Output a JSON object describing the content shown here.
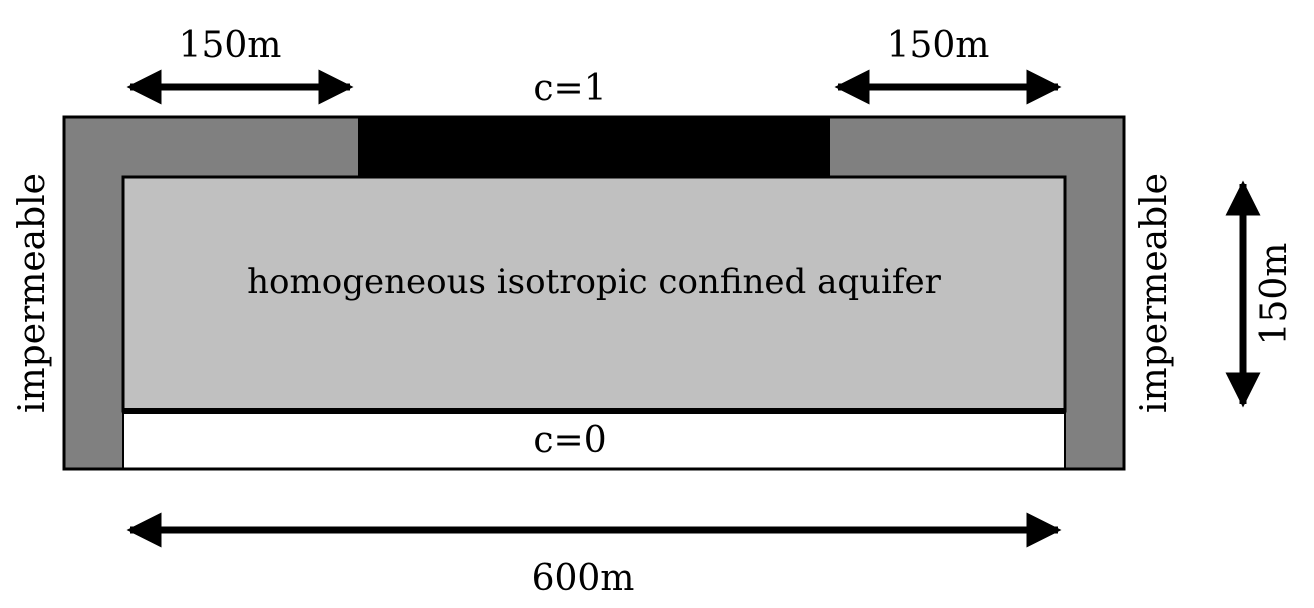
{
  "labels": {
    "top_left_width": "150m",
    "top_right_width": "150m",
    "top_boundary": "c=1",
    "bottom_boundary": "c=0",
    "aquifer": "homogeneous isotropic confined aquifer",
    "left_wall": "impermeable",
    "right_wall": "impermeable",
    "height": "150m",
    "total_width": "600m"
  },
  "colors": {
    "wall_gray": "#808080",
    "aquifer_gray": "#c0c0c0",
    "source_black": "#000000",
    "sink_white": "#ffffff",
    "outline": "#000000"
  }
}
